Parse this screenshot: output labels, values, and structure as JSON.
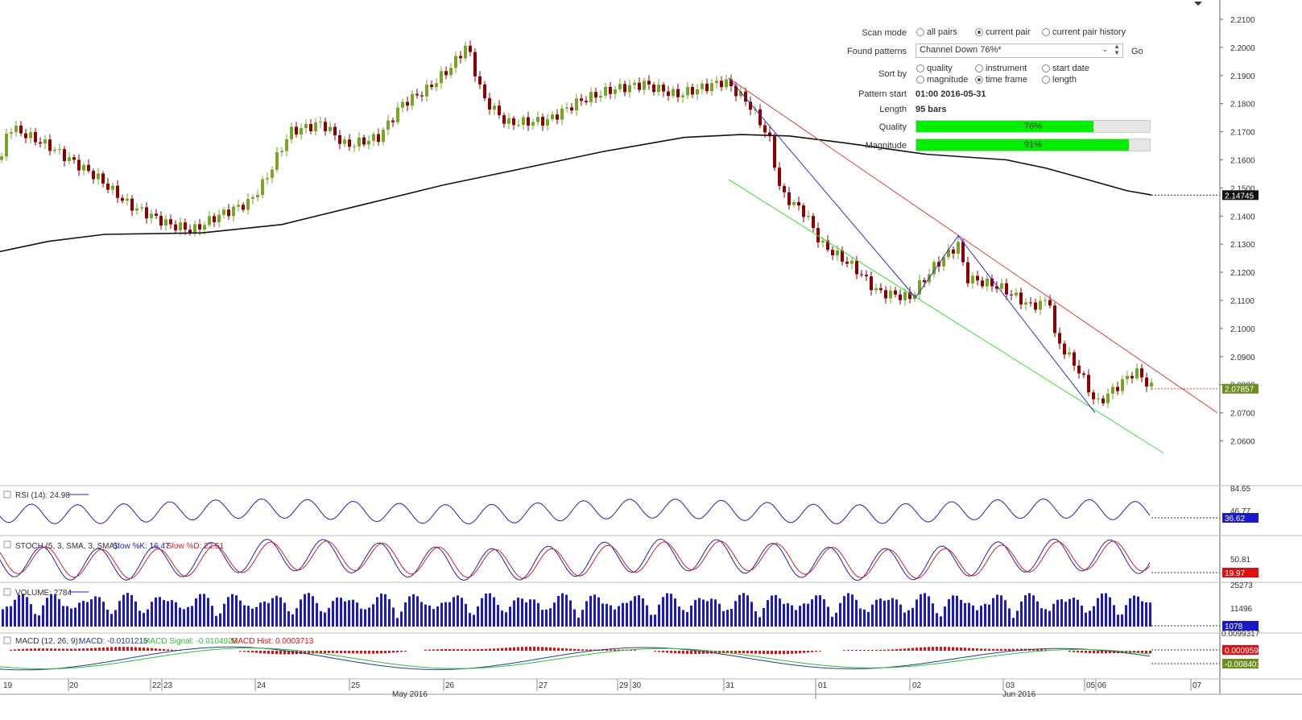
{
  "scan_panel": {
    "scan_mode_label": "Scan mode",
    "scan_modes": [
      {
        "label": "all pairs",
        "selected": false
      },
      {
        "label": "current pair",
        "selected": true
      },
      {
        "label": "current pair history",
        "selected": false
      }
    ],
    "found_patterns_label": "Found patterns",
    "found_patterns_value": "Channel Down 76%*",
    "go_label": "Go",
    "sort_by_label": "Sort by",
    "sort_options": [
      {
        "label": "quality",
        "selected": false
      },
      {
        "label": "instrument",
        "selected": false
      },
      {
        "label": "start date",
        "selected": false
      },
      {
        "label": "magnitude",
        "selected": false
      },
      {
        "label": "time frame",
        "selected": true
      },
      {
        "label": "length",
        "selected": false
      }
    ],
    "pattern_start_label": "Pattern start",
    "pattern_start_value": "01:00 2016-05-31",
    "length_label": "Length",
    "length_value": "95 bars",
    "quality_label": "Quality",
    "quality_text": "76%",
    "quality_fraction": 0.76,
    "magnitude_label": "Magnitude",
    "magnitude_text": "91%",
    "magnitude_fraction": 0.91
  },
  "chart_data": {
    "type": "candlestick",
    "y_ticks": [
      "2.2100",
      "2.2000",
      "2.1900",
      "2.1800",
      "2.1700",
      "2.1600",
      "2.1500",
      "2.1400",
      "2.1300",
      "2.1200",
      "2.1100",
      "2.1000",
      "2.0900",
      "2.0800",
      "2.0700",
      "2.0600"
    ],
    "ylim": [
      2.0557,
      2.22
    ],
    "price_tags": {
      "ma_value": "2.14745",
      "last_price": "2.07857",
      "last_price_value": 2.07857,
      "ma_value_num": 2.14745
    },
    "x_day_labels": [
      "19",
      "20",
      "22",
      "23",
      "24",
      "25",
      "26",
      "27",
      "29",
      "30",
      "31",
      "01",
      "02",
      "03",
      "05",
      "06",
      "07"
    ],
    "x_month_labels": [
      "May 2016",
      "Jun 2016"
    ],
    "indicators": {
      "rsi": {
        "label": "RSI (14): 24.98",
        "ticks": [
          "84.65",
          "46.77"
        ],
        "tag": "36.62"
      },
      "stoch": {
        "prefix": "STOCH (5, 3, SMA, 3, SMA): ",
        "k_text": "Slow %K: 16.47",
        "d_text": "Slow %D: 22.51",
        "ticks": [
          "50.81"
        ],
        "tag": "19.97"
      },
      "volume": {
        "label": "VOLUME: 2784",
        "ticks": [
          "25273",
          "11496"
        ],
        "tag": "1078"
      },
      "macd": {
        "prefix": "MACD (12, 26, 9): ",
        "macd_text": "MACD: -0.0101215",
        "signal_text": "MACD Signal: -0.0104928",
        "hist_text": "MACD Hist: 0.0003713",
        "ticks": [
          "0.0099317"
        ],
        "tag1": "0.0009594",
        "tag2": "-0.0084012"
      }
    }
  },
  "colors": {
    "bull": "#7aa428",
    "bear": "#8b0000",
    "ma": "#111111",
    "upper_channel": "#d94040",
    "lower_channel": "#33dd33",
    "zigzag": "#3333bb",
    "rsi": "#2222aa",
    "stoch_k": "#2222aa",
    "stoch_d": "#cc2222",
    "volume": "#1a1acc",
    "macd": "#2a3a8a",
    "macd_signal": "#33bb33",
    "macd_hist": "#dd1111",
    "tag_green": "#6b8e23",
    "tag_dark": "#111111",
    "tag_blue": "#1a1acc",
    "tag_red": "#dd1111"
  }
}
